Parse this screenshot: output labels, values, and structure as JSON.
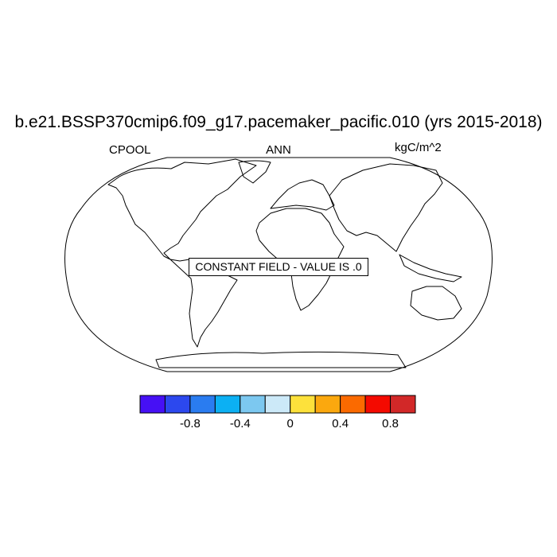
{
  "title": "b.e21.BSSP370cmip6.f09_g17.pacemaker_pacific.010 (yrs 2015-2018)",
  "left_label": "CPOOL",
  "center_label": "ANN",
  "right_label": "kgC/m^2",
  "map_message": "CONSTANT FIELD - VALUE IS .0",
  "colorbar": {
    "colors": [
      "#4610f5",
      "#2c48ee",
      "#2a7cf0",
      "#0cb0f3",
      "#7cc8f0",
      "#cce9f8",
      "#fde13b",
      "#fba80e",
      "#fb6a00",
      "#f40a00",
      "#d22828"
    ],
    "tick_labels": [
      "-0.8",
      "-0.4",
      "0",
      "0.4",
      "0.8"
    ]
  }
}
